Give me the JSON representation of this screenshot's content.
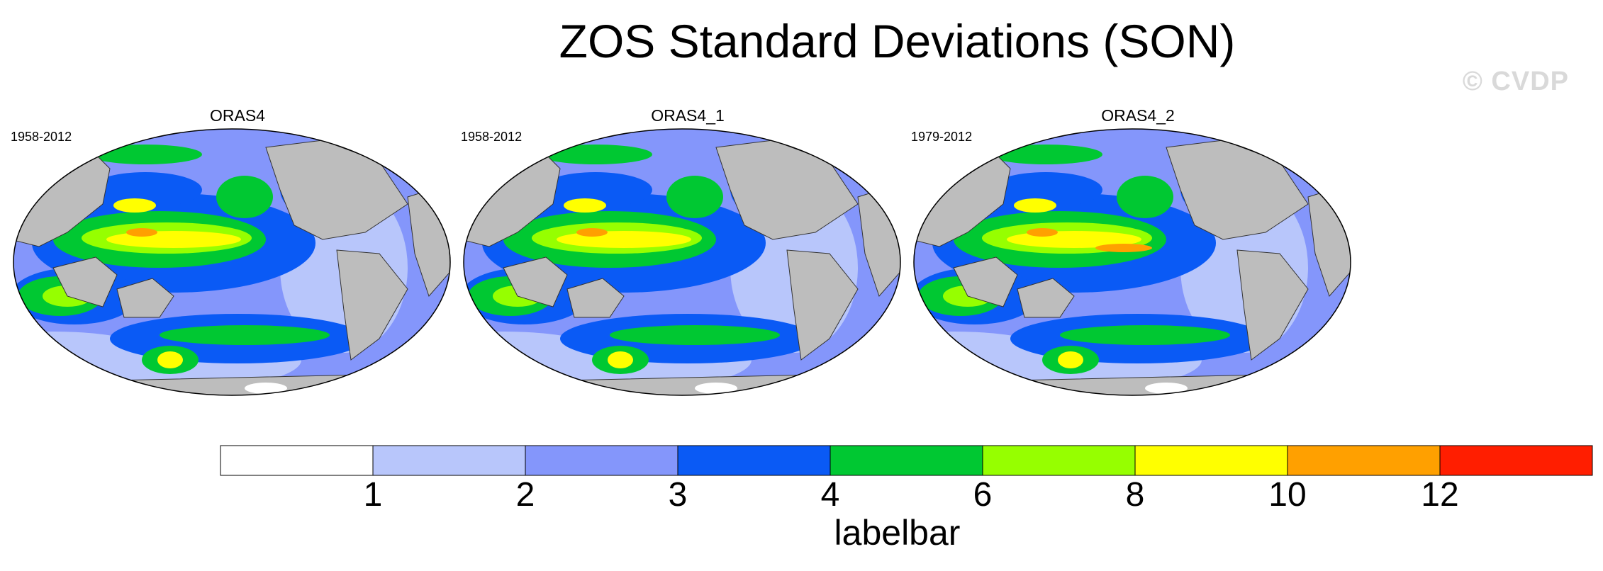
{
  "title": "ZOS Standard Deviations (SON)",
  "watermark": "© CVDP",
  "panels": [
    {
      "name": "ORAS4",
      "years": "1958-2012"
    },
    {
      "name": "ORAS4_1",
      "years": "1958-2012"
    },
    {
      "name": "ORAS4_2",
      "years": "1979-2012"
    }
  ],
  "labelbar": {
    "title": "labelbar",
    "levels": [
      "1",
      "2",
      "3",
      "4",
      "6",
      "8",
      "10",
      "12"
    ],
    "colors": [
      "#ffffff",
      "#b8c6fb",
      "#8496fb",
      "#0a5af5",
      "#00c832",
      "#96ff00",
      "#ffff00",
      "#ffa000",
      "#ff1e00"
    ]
  },
  "colors": {
    "land": "#bdbdbd",
    "outline": "#000000"
  }
}
